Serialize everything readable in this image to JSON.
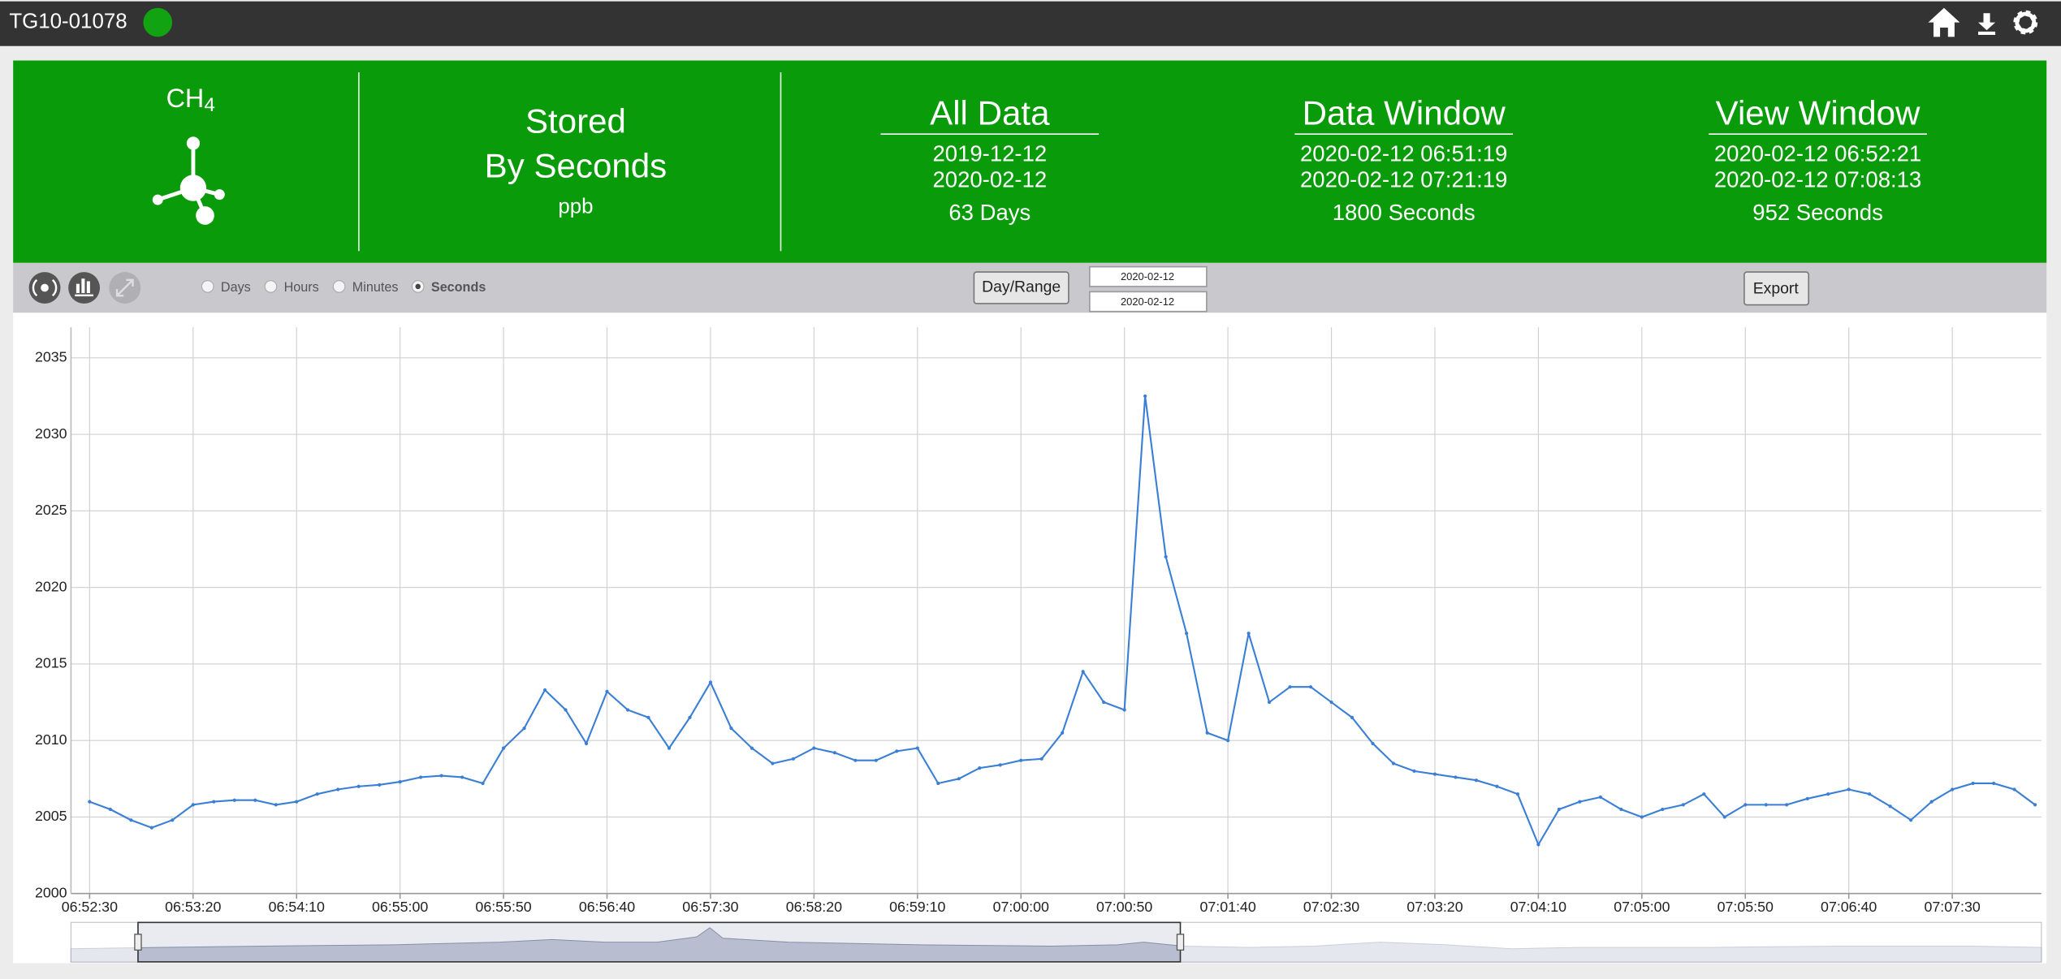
{
  "header": {
    "title": "TG10-01078"
  },
  "summary": {
    "gas": "CH",
    "gas_subscript": "4",
    "mode": [
      "Stored",
      "By Seconds"
    ],
    "unit": "ppb",
    "all_data": {
      "title": "All Data",
      "start": "2019-12-12",
      "end": "2020-02-12",
      "span": "63 Days"
    },
    "data_window": {
      "title": "Data Window",
      "start": "2020-02-12 06:51:19",
      "end": "2020-02-12 07:21:19",
      "span": "1800 Seconds"
    },
    "view_window": {
      "title": "View Window",
      "start": "2020-02-12 06:52:21",
      "end": "2020-02-12 07:08:13",
      "span": "952 Seconds"
    }
  },
  "toolbar": {
    "resolutions": [
      "Days",
      "Hours",
      "Minutes",
      "Seconds"
    ],
    "selected": 3,
    "range_button": "Day/Range",
    "date_from": "2020-02-12",
    "date_to": "2020-02-12",
    "export": "Export"
  },
  "chart_data": {
    "type": "line",
    "color": "#3a7fd5",
    "x": [
      "06:52:30",
      "06:52:40",
      "06:52:50",
      "06:53:00",
      "06:53:10",
      "06:53:20",
      "06:53:30",
      "06:53:40",
      "06:53:50",
      "06:54:00",
      "06:54:10",
      "06:54:20",
      "06:54:30",
      "06:54:40",
      "06:54:50",
      "06:55:00",
      "06:55:10",
      "06:55:20",
      "06:55:30",
      "06:55:40",
      "06:55:50",
      "06:56:00",
      "06:56:10",
      "06:56:20",
      "06:56:30",
      "06:56:40",
      "06:56:50",
      "06:57:00",
      "06:57:10",
      "06:57:20",
      "06:57:30",
      "06:57:40",
      "06:57:50",
      "06:58:00",
      "06:58:10",
      "06:58:20",
      "06:58:30",
      "06:58:40",
      "06:58:50",
      "06:59:00",
      "06:59:10",
      "06:59:20",
      "06:59:30",
      "06:59:40",
      "06:59:50",
      "07:00:00",
      "07:00:10",
      "07:00:20",
      "07:00:30",
      "07:00:40",
      "07:00:50",
      "07:01:00",
      "07:01:10",
      "07:01:20",
      "07:01:30",
      "07:01:40",
      "07:01:50",
      "07:02:00",
      "07:02:10",
      "07:02:20",
      "07:02:30",
      "07:02:40",
      "07:02:50",
      "07:03:00",
      "07:03:10",
      "07:03:20",
      "07:03:30",
      "07:03:40",
      "07:03:50",
      "07:04:00",
      "07:04:10",
      "07:04:20",
      "07:04:30",
      "07:04:40",
      "07:04:50",
      "07:05:00",
      "07:05:10",
      "07:05:20",
      "07:05:30",
      "07:05:40",
      "07:05:50",
      "07:06:00",
      "07:06:10",
      "07:06:20",
      "07:06:30",
      "07:06:40",
      "07:06:50",
      "07:07:00",
      "07:07:10",
      "07:07:20",
      "07:07:30",
      "07:07:40",
      "07:07:50",
      "07:08:00",
      "07:08:10"
    ],
    "values": [
      2006,
      2005.5,
      2004.8,
      2004.3,
      2004.8,
      2005.8,
      2006,
      2006.1,
      2006.1,
      2005.8,
      2006,
      2006.5,
      2006.8,
      2007,
      2007.1,
      2007.3,
      2007.6,
      2007.7,
      2007.6,
      2007.2,
      2009.5,
      2010.8,
      2013.3,
      2012,
      2009.8,
      2013.2,
      2012,
      2011.5,
      2009.5,
      2011.5,
      2013.8,
      2010.8,
      2009.5,
      2008.5,
      2008.8,
      2009.5,
      2009.2,
      2008.7,
      2008.7,
      2009.3,
      2009.5,
      2007.2,
      2007.5,
      2008.2,
      2008.4,
      2008.7,
      2008.8,
      2010.5,
      2014.5,
      2012.5,
      2012,
      2032.5,
      2022,
      2017,
      2010.5,
      2010,
      2017,
      2012.5,
      2013.5,
      2013.5,
      2012.5,
      2011.5,
      2009.8,
      2008.5,
      2008,
      2007.8,
      2007.6,
      2007.4,
      2007,
      2006.5,
      2003.2,
      2005.5,
      2006,
      2006.3,
      2005.5,
      2005,
      2005.5,
      2005.8,
      2006.5,
      2005,
      2005.8,
      2005.8,
      2005.8,
      2006.2,
      2006.5,
      2006.8,
      2006.5,
      2005.7,
      2004.8,
      2006,
      2006.8,
      2007.2,
      2007.2,
      2006.8,
      2005.8
    ],
    "xlim": [
      "06:52:21",
      "07:08:13"
    ],
    "xticks": [
      "06:52:30",
      "06:53:20",
      "06:54:10",
      "06:55:00",
      "06:55:50",
      "06:56:40",
      "06:57:30",
      "06:58:20",
      "06:59:10",
      "07:00:00",
      "07:00:50",
      "07:01:40",
      "07:02:30",
      "07:03:20",
      "07:04:10",
      "07:05:00",
      "07:05:50",
      "07:06:40",
      "07:07:30"
    ],
    "ylim": [
      2000,
      2037
    ],
    "yticks": [
      2000,
      2005,
      2010,
      2015,
      2020,
      2025,
      2030,
      2035
    ],
    "grid": true
  }
}
